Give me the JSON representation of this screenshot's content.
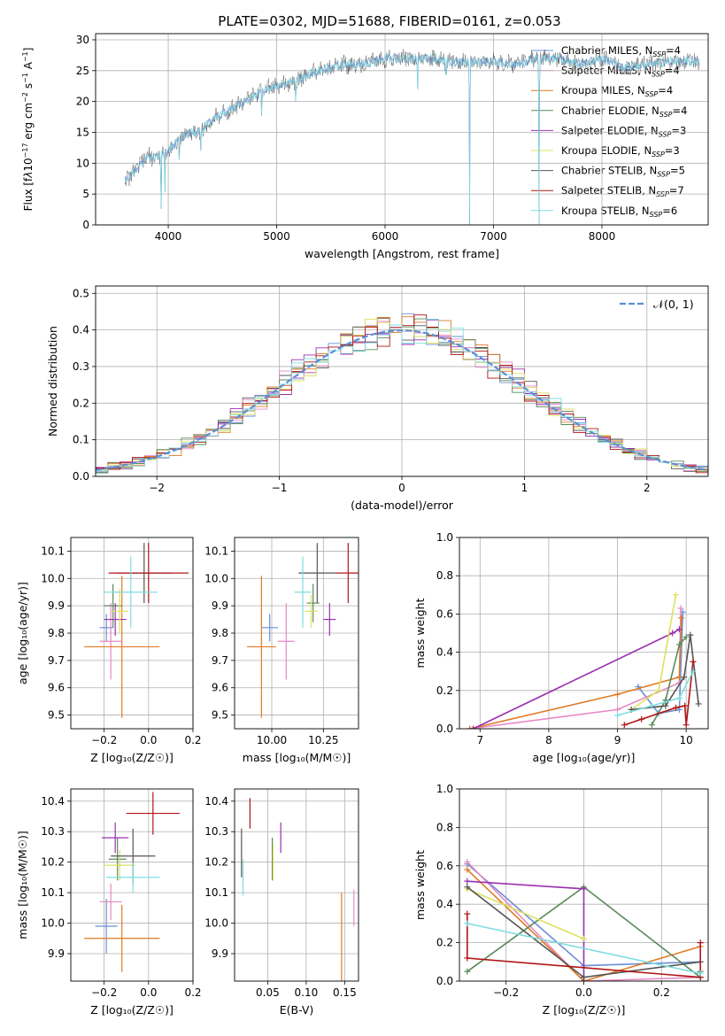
{
  "figure_title": "PLATE=0302, MJD=51688, FIBERID=0161, z=0.053",
  "legend": [
    {
      "label": "Chabrier MILES, N",
      "sub": "SSP",
      "tail": "=4",
      "color": "#6b8fd6"
    },
    {
      "label": "Salpeter MILES, N",
      "sub": "SSP",
      "tail": "=4",
      "color": "#e58ac4"
    },
    {
      "label": "Kroupa MILES, N",
      "sub": "SSP",
      "tail": "=4",
      "color": "#e07b25"
    },
    {
      "label": "Chabrier ELODIE, N",
      "sub": "SSP",
      "tail": "=4",
      "color": "#5a8a5a"
    },
    {
      "label": "Salpeter ELODIE, N",
      "sub": "SSP",
      "tail": "=3",
      "color": "#9b30b0"
    },
    {
      "label": "Kroupa ELODIE, N",
      "sub": "SSP",
      "tail": "=3",
      "color": "#dde060"
    },
    {
      "label": "Chabrier STELIB, N",
      "sub": "SSP",
      "tail": "=5",
      "color": "#555555"
    },
    {
      "label": "Salpeter STELIB, N",
      "sub": "SSP",
      "tail": "=7",
      "color": "#b01515"
    },
    {
      "label": "Kroupa STELIB, N",
      "sub": "SSP",
      "tail": "=6",
      "color": "#7fdde0"
    }
  ],
  "chart_data": [
    {
      "id": "spectrum",
      "type": "line",
      "xlabel": "wavelength [Angstrom, rest frame]",
      "ylabel_html": "Flux [f<tspan font-style='italic'>λ</tspan>10<tspan dy='-5' font-size='8'>−17</tspan><tspan dy='5'> erg cm</tspan><tspan dy='-5' font-size='8'>−2</tspan><tspan dy='5'> s</tspan><tspan dy='-5' font-size='8'>−1</tspan><tspan dy='5'> A</tspan><tspan dy='-5' font-size='8'>−1</tspan><tspan dy='5'>]</tspan>",
      "xlim": [
        3330,
        8980
      ],
      "ylim": [
        0,
        31
      ],
      "xticks": [
        4000,
        5000,
        6000,
        7000,
        8000
      ],
      "yticks": [
        0,
        5,
        10,
        15,
        20,
        25,
        30
      ],
      "continuum": [
        [
          3600,
          7
        ],
        [
          3700,
          9
        ],
        [
          3800,
          11
        ],
        [
          3900,
          11
        ],
        [
          4000,
          12
        ],
        [
          4100,
          14
        ],
        [
          4200,
          15
        ],
        [
          4300,
          15
        ],
        [
          4400,
          17
        ],
        [
          4500,
          18
        ],
        [
          4600,
          19
        ],
        [
          4700,
          20
        ],
        [
          4800,
          21
        ],
        [
          4900,
          22
        ],
        [
          5000,
          22.5
        ],
        [
          5100,
          23
        ],
        [
          5200,
          23.5
        ],
        [
          5300,
          24.5
        ],
        [
          5400,
          25
        ],
        [
          5500,
          25.5
        ],
        [
          5600,
          26
        ],
        [
          5700,
          26
        ],
        [
          5800,
          26
        ],
        [
          5900,
          26.5
        ],
        [
          6000,
          27
        ],
        [
          6200,
          27
        ],
        [
          6400,
          27
        ],
        [
          6600,
          26.5
        ],
        [
          6800,
          26.5
        ],
        [
          7000,
          26.5
        ],
        [
          7200,
          26
        ],
        [
          7400,
          27
        ],
        [
          7600,
          27
        ],
        [
          7800,
          26
        ],
        [
          8000,
          27
        ],
        [
          8200,
          25.5
        ],
        [
          8400,
          26
        ],
        [
          8600,
          26.5
        ],
        [
          8800,
          26.5
        ],
        [
          8900,
          26.5
        ]
      ],
      "dips": [
        [
          3934,
          1
        ],
        [
          3969,
          4
        ],
        [
          4102,
          9
        ],
        [
          4300,
          12
        ],
        [
          4861,
          17
        ],
        [
          5175,
          20
        ],
        [
          6300,
          22
        ],
        [
          6563,
          23
        ],
        [
          6780,
          0
        ],
        [
          7420,
          0
        ]
      ]
    },
    {
      "id": "residuals",
      "type": "line",
      "xlabel": "(data-model)/error",
      "ylabel": "Normed distribution",
      "xlim": [
        -2.5,
        2.5
      ],
      "ylim": [
        0,
        0.52
      ],
      "xticks": [
        -2,
        -1,
        0,
        1,
        2
      ],
      "xticklabels": [
        "−2",
        "−1",
        "0",
        "1",
        "2"
      ],
      "yticks": [
        0,
        0.1,
        0.2,
        0.3,
        0.4,
        0.5
      ],
      "yticklabels": [
        "0.0",
        "0.1",
        "0.2",
        "0.3",
        "0.4",
        "0.5"
      ],
      "series_name": "𝒩(0, 1)",
      "gaussian": {
        "mean": 0,
        "sigma": 1
      }
    },
    {
      "id": "age-Z",
      "type": "scatter",
      "xlabel": "Z [log₁₀(Z/Z☉)]",
      "ylabel": "age  [log₁₀(age/yr)]",
      "xlim": [
        -0.35,
        0.2
      ],
      "ylim": [
        9.45,
        10.15
      ],
      "xticks": [
        -0.2,
        0.0,
        0.2
      ],
      "xticklabels": [
        "−0.2",
        "0.0",
        "0.2"
      ],
      "yticks": [
        9.5,
        9.6,
        9.7,
        9.8,
        9.9,
        10.0,
        10.1
      ],
      "yticklabels": [
        "9.5",
        "9.6",
        "9.7",
        "9.8",
        "9.9",
        "10.0",
        "10.1"
      ],
      "points": [
        {
          "x": -0.19,
          "y": 9.82,
          "xerr": 0.03,
          "yerr": 0.05,
          "c": 0
        },
        {
          "x": -0.17,
          "y": 9.77,
          "xerr": 0.05,
          "yerr": 0.14,
          "c": 1
        },
        {
          "x": -0.12,
          "y": 9.75,
          "xerr": 0.17,
          "yerr": 0.26,
          "c": 2
        },
        {
          "x": -0.16,
          "y": 9.9,
          "xerr": 0.04,
          "yerr": 0.08,
          "c": 3
        },
        {
          "x": -0.15,
          "y": 9.85,
          "xerr": 0.05,
          "yerr": 0.06,
          "c": 4
        },
        {
          "x": -0.13,
          "y": 9.88,
          "xerr": 0.04,
          "yerr": 0.08,
          "c": 5
        },
        {
          "x": -0.02,
          "y": 10.02,
          "xerr": 0.12,
          "yerr": 0.11,
          "c": 6
        },
        {
          "x": 0.0,
          "y": 10.02,
          "xerr": 0.18,
          "yerr": 0.11,
          "c": 7
        },
        {
          "x": -0.08,
          "y": 9.95,
          "xerr": 0.12,
          "yerr": 0.13,
          "c": 8
        }
      ]
    },
    {
      "id": "age-mass",
      "type": "scatter",
      "xlabel": "mass [log₁₀(M/M☉)]",
      "ylabel": "",
      "xlim": [
        9.82,
        10.42
      ],
      "ylim": [
        9.45,
        10.15
      ],
      "xticks": [
        10.0,
        10.25
      ],
      "xticklabels": [
        "10.00",
        "10.25"
      ],
      "yticks": [
        9.5,
        9.6,
        9.7,
        9.8,
        9.9,
        10.0,
        10.1
      ],
      "yticklabels": [
        "9.5",
        "9.6",
        "9.7",
        "9.8",
        "9.9",
        "10.0",
        "10.1"
      ],
      "points": [
        {
          "x": 9.99,
          "y": 9.82,
          "xerr": 0.04,
          "yerr": 0.05,
          "c": 0
        },
        {
          "x": 10.07,
          "y": 9.77,
          "xerr": 0.04,
          "yerr": 0.14,
          "c": 1
        },
        {
          "x": 9.95,
          "y": 9.75,
          "xerr": 0.07,
          "yerr": 0.26,
          "c": 2
        },
        {
          "x": 10.2,
          "y": 9.91,
          "xerr": 0.03,
          "yerr": 0.07,
          "c": 3
        },
        {
          "x": 10.28,
          "y": 9.85,
          "xerr": 0.03,
          "yerr": 0.06,
          "c": 4
        },
        {
          "x": 10.19,
          "y": 9.88,
          "xerr": 0.03,
          "yerr": 0.06,
          "c": 5
        },
        {
          "x": 10.22,
          "y": 10.02,
          "xerr": 0.09,
          "yerr": 0.11,
          "c": 6
        },
        {
          "x": 10.37,
          "y": 10.02,
          "xerr": 0.06,
          "yerr": 0.11,
          "c": 7
        },
        {
          "x": 10.15,
          "y": 9.95,
          "xerr": 0.04,
          "yerr": 0.13,
          "c": 8
        }
      ]
    },
    {
      "id": "weight-age",
      "type": "line",
      "xlabel": "age  [log₁₀(age/yr)]",
      "ylabel": "mass weight",
      "xlim": [
        6.7,
        10.32
      ],
      "ylim": [
        0,
        1
      ],
      "xticks": [
        7,
        8,
        9,
        10
      ],
      "yticks": [
        0,
        0.2,
        0.4,
        0.6,
        0.8,
        1.0
      ],
      "yticklabels": [
        "0.0",
        "0.2",
        "0.4",
        "0.6",
        "0.8",
        "1.0"
      ],
      "series": [
        {
          "c": 0,
          "x": [
            9.3,
            9.6,
            9.9,
            9.95
          ],
          "y": [
            0.22,
            0.08,
            0.1,
            0.61
          ]
        },
        {
          "c": 1,
          "x": [
            6.85,
            9.0,
            9.9,
            9.92
          ],
          "y": [
            0.0,
            0.1,
            0.24,
            0.63
          ]
        },
        {
          "c": 2,
          "x": [
            6.85,
            9.0,
            9.9,
            9.93
          ],
          "y": [
            0.0,
            0.18,
            0.27,
            0.58
          ]
        },
        {
          "c": 3,
          "x": [
            9.5,
            9.7,
            9.9,
            10.0
          ],
          "y": [
            0.02,
            0.15,
            0.44,
            0.48
          ]
        },
        {
          "c": 4,
          "x": [
            6.9,
            9.8,
            9.9
          ],
          "y": [
            0.0,
            0.5,
            0.52
          ]
        },
        {
          "c": 5,
          "x": [
            9.2,
            9.6,
            9.85
          ],
          "y": [
            0.1,
            0.2,
            0.7
          ]
        },
        {
          "c": 6,
          "x": [
            9.2,
            9.7,
            9.97,
            10.06,
            10.18
          ],
          "y": [
            0.1,
            0.12,
            0.27,
            0.49,
            0.13
          ]
        },
        {
          "c": 7,
          "x": [
            9.1,
            9.35,
            9.85,
            9.98,
            10.0,
            10.1
          ],
          "y": [
            0.02,
            0.05,
            0.11,
            0.12,
            0.02,
            0.35
          ]
        },
        {
          "c": 8,
          "x": [
            9.0,
            9.5,
            9.9,
            10.1
          ],
          "y": [
            0.07,
            0.12,
            0.16,
            0.3
          ]
        }
      ]
    },
    {
      "id": "mass-Z",
      "type": "scatter",
      "xlabel": "Z [log₁₀(Z/Z☉)]",
      "ylabel": "mass [log₁₀(M/M☉)]",
      "xlim": [
        -0.35,
        0.2
      ],
      "ylim": [
        9.81,
        10.44
      ],
      "xticks": [
        -0.2,
        0.0,
        0.2
      ],
      "xticklabels": [
        "−0.2",
        "0.0",
        "0.2"
      ],
      "yticks": [
        9.9,
        10.0,
        10.1,
        10.2,
        10.3,
        10.4
      ],
      "yticklabels": [
        "9.9",
        "10.0",
        "10.1",
        "10.2",
        "10.3",
        "10.4"
      ],
      "points": [
        {
          "x": -0.19,
          "y": 9.99,
          "xerr": 0.05,
          "yerr": 0.09,
          "c": 0
        },
        {
          "x": -0.17,
          "y": 10.07,
          "xerr": 0.05,
          "yerr": 0.06,
          "c": 1
        },
        {
          "x": -0.12,
          "y": 9.95,
          "xerr": 0.17,
          "yerr": 0.11,
          "c": 2
        },
        {
          "x": -0.14,
          "y": 10.21,
          "xerr": 0.04,
          "yerr": 0.07,
          "c": 3
        },
        {
          "x": -0.15,
          "y": 10.28,
          "xerr": 0.06,
          "yerr": 0.05,
          "c": 4
        },
        {
          "x": -0.13,
          "y": 10.19,
          "xerr": 0.07,
          "yerr": 0.05,
          "c": 5
        },
        {
          "x": -0.07,
          "y": 10.22,
          "xerr": 0.1,
          "yerr": 0.09,
          "c": 6
        },
        {
          "x": 0.02,
          "y": 10.36,
          "xerr": 0.12,
          "yerr": 0.07,
          "c": 7
        },
        {
          "x": -0.07,
          "y": 10.15,
          "xerr": 0.12,
          "yerr": 0.05,
          "c": 8
        }
      ]
    },
    {
      "id": "mass-ebv",
      "type": "scatter",
      "xlabel": "E(B-V)",
      "ylabel": "",
      "xlim": [
        0.007,
        0.168
      ],
      "ylim": [
        9.81,
        10.44
      ],
      "xticks": [
        0.05,
        0.1,
        0.15
      ],
      "xticklabels": [
        "0.05",
        "0.10",
        "0.15"
      ],
      "yticks": [
        9.9,
        10.0,
        10.1,
        10.2,
        10.3,
        10.4
      ],
      "yticklabels": [
        "9.9",
        "10.0",
        "10.1",
        "10.2",
        "10.3",
        "10.4"
      ],
      "points": [
        {
          "x": 0.016,
          "y": 10.23,
          "xerr": 0,
          "yerr": 0.08,
          "c": 6
        },
        {
          "x": 0.018,
          "y": 10.15,
          "xerr": 0,
          "yerr": 0.06,
          "c": 8
        },
        {
          "x": 0.027,
          "y": 10.36,
          "xerr": 0,
          "yerr": 0.05,
          "c": 7
        },
        {
          "x": 0.056,
          "y": 10.21,
          "xerr": 0,
          "yerr": 0.07,
          "c": 3
        },
        {
          "x": 0.057,
          "y": 10.2,
          "xerr": 0,
          "yerr": 0.06,
          "c": 5
        },
        {
          "x": 0.067,
          "y": 10.28,
          "xerr": 0,
          "yerr": 0.05,
          "c": 4
        },
        {
          "x": 0.146,
          "y": 9.95,
          "xerr": 0,
          "yerr": 0.15,
          "c": 2
        },
        {
          "x": 0.162,
          "y": 10.05,
          "xerr": 0,
          "yerr": 0.06,
          "c": 1
        }
      ]
    },
    {
      "id": "weight-Z",
      "type": "line",
      "xlabel": "Z [log₁₀(Z/Z☉)]",
      "ylabel": "mass weight",
      "xlim": [
        -0.32,
        0.32
      ],
      "ylim": [
        0,
        1
      ],
      "xticks": [
        -0.2,
        0.0,
        0.2
      ],
      "xticklabels": [
        "−0.2",
        "0.0",
        "0.2"
      ],
      "yticks": [
        0,
        0.2,
        0.4,
        0.6,
        0.8,
        1.0
      ],
      "yticklabels": [
        "0.0",
        "0.2",
        "0.4",
        "0.6",
        "0.8",
        "1.0"
      ],
      "series": [
        {
          "c": 0,
          "x": [
            -0.3,
            0.0,
            0.3
          ],
          "y": [
            0.61,
            0.08,
            0.1
          ]
        },
        {
          "c": 1,
          "x": [
            -0.3,
            0.0,
            0.3
          ],
          "y": [
            0.62,
            0.0,
            0.02
          ]
        },
        {
          "c": 2,
          "x": [
            -0.3,
            0.0,
            0.3
          ],
          "y": [
            0.58,
            0.0,
            0.18
          ]
        },
        {
          "c": 3,
          "x": [
            -0.3,
            0.0,
            0.3,
            0.3
          ],
          "y": [
            0.05,
            0.49,
            0.02,
            0.05
          ]
        },
        {
          "c": 4,
          "x": [
            -0.3,
            0.0,
            0.0
          ],
          "y": [
            0.52,
            0.48,
            0.0
          ]
        },
        {
          "c": 5,
          "x": [
            -0.3,
            0.0
          ],
          "y": [
            0.48,
            0.22
          ]
        },
        {
          "c": 6,
          "x": [
            -0.3,
            0.0,
            0.3
          ],
          "y": [
            0.49,
            0.02,
            0.1
          ]
        },
        {
          "c": 7,
          "x": [
            -0.3,
            -0.3,
            0.3,
            0.3
          ],
          "y": [
            0.35,
            0.12,
            0.02,
            0.2
          ]
        },
        {
          "c": 8,
          "x": [
            -0.3,
            0.3
          ],
          "y": [
            0.3,
            0.04
          ]
        }
      ]
    }
  ]
}
